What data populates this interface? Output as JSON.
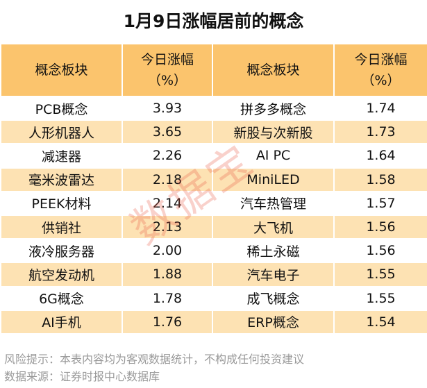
{
  "title": "1月9日涨幅居前的概念",
  "table": {
    "header": [
      [
        "概念板块"
      ],
      [
        "今日涨幅",
        "（%）"
      ],
      [
        "概念板块"
      ],
      [
        "今日涨幅",
        "（%）"
      ]
    ],
    "rows": [
      [
        "PCB概念",
        "3.93",
        "拼多多概念",
        "1.74"
      ],
      [
        "人形机器人",
        "3.65",
        "新股与次新股",
        "1.73"
      ],
      [
        "减速器",
        "2.26",
        "AI PC",
        "1.64"
      ],
      [
        "毫米波雷达",
        "2.18",
        "MiniLED",
        "1.58"
      ],
      [
        "PEEK材料",
        "2.14",
        "汽车热管理",
        "1.57"
      ],
      [
        "供销社",
        "2.13",
        "大飞机",
        "1.56"
      ],
      [
        "液冷服务器",
        "2.00",
        "稀土永磁",
        "1.56"
      ],
      [
        "航空发动机",
        "1.88",
        "汽车电子",
        "1.55"
      ],
      [
        "6G概念",
        "1.78",
        "成飞概念",
        "1.55"
      ],
      [
        "AI手机",
        "1.76",
        "ERP概念",
        "1.54"
      ]
    ]
  },
  "watermark": "数据宝",
  "footer": [
    "风险提示：本表内容均为客观数据统计，不构成任何投资建议",
    "数据来源：证券时报中心数据库"
  ]
}
